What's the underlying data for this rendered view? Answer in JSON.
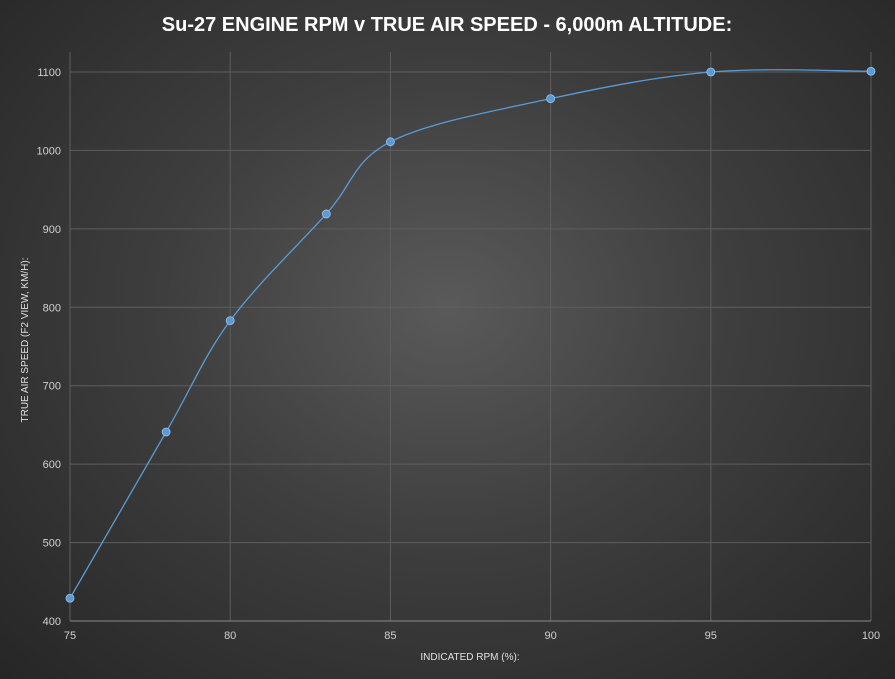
{
  "chart_data": {
    "type": "line",
    "title": "Su-27 ENGINE RPM v TRUE AIR SPEED - 6,000m ALTITUDE:",
    "xlabel": "INDICATED RPM (%):",
    "ylabel": "TRUE AIR SPEED (F2 VIEW, KM/H):",
    "xlim": [
      75,
      100
    ],
    "ylim": [
      400,
      1100
    ],
    "xticks": [
      75,
      80,
      85,
      90,
      95,
      100
    ],
    "yticks": [
      400,
      500,
      600,
      700,
      800,
      900,
      1000,
      1100
    ],
    "grid": true,
    "smooth": true,
    "series": [
      {
        "x": [
          75,
          78,
          80,
          83,
          85,
          90,
          95,
          100
        ],
        "y": [
          429,
          641,
          783,
          919,
          1011,
          1066,
          1100,
          1101
        ]
      }
    ],
    "colors": {
      "line": "#5b9bd5",
      "marker": "#5b9bd5",
      "grid": "#5e5e5e"
    }
  }
}
